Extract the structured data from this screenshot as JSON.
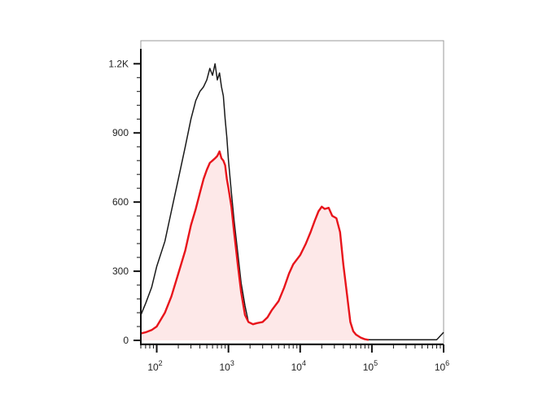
{
  "chart_data": {
    "type": "area",
    "title": "",
    "xlabel": "",
    "ylabel": "",
    "x_scale": "log",
    "xlim": [
      60,
      1000000
    ],
    "ylim": [
      0,
      1300
    ],
    "grid": false,
    "y_ticks": [
      {
        "value": 0,
        "label": "0"
      },
      {
        "value": 300,
        "label": "300"
      },
      {
        "value": 600,
        "label": "600"
      },
      {
        "value": 900,
        "label": "900"
      },
      {
        "value": 1200,
        "label": "1.2K"
      }
    ],
    "x_ticks": [
      {
        "value": 100,
        "base": "10",
        "exp": "2"
      },
      {
        "value": 1000,
        "base": "10",
        "exp": "3"
      },
      {
        "value": 10000,
        "base": "10",
        "exp": "4"
      },
      {
        "value": 100000,
        "base": "10",
        "exp": "5"
      },
      {
        "value": 1000000,
        "base": "10",
        "exp": "6"
      }
    ],
    "series": [
      {
        "color": "#1a1a1a",
        "fill": "none",
        "x": [
          60,
          70,
          85,
          100,
          130,
          160,
          200,
          250,
          300,
          350,
          400,
          450,
          500,
          550,
          600,
          650,
          700,
          750,
          800,
          850,
          900,
          950,
          1000,
          1100,
          1200,
          1350,
          1500,
          1700,
          1900,
          2200,
          2500,
          3000,
          3500,
          4000,
          5000,
          6000,
          7000,
          8000,
          10000,
          20000,
          50000,
          100000,
          200000,
          500000,
          800000,
          1000000
        ],
        "y": [
          110,
          160,
          230,
          320,
          430,
          560,
          700,
          840,
          960,
          1040,
          1080,
          1100,
          1130,
          1180,
          1150,
          1200,
          1130,
          1160,
          1100,
          1060,
          960,
          880,
          780,
          640,
          520,
          380,
          250,
          150,
          80,
          50,
          30,
          20,
          18,
          15,
          12,
          10,
          10,
          8,
          6,
          5,
          4,
          3,
          3,
          3,
          3,
          35
        ]
      },
      {
        "color": "#e8141b",
        "fill": "#fde8e8",
        "x": [
          60,
          70,
          85,
          100,
          130,
          160,
          200,
          250,
          300,
          350,
          400,
          450,
          500,
          550,
          600,
          650,
          700,
          750,
          800,
          850,
          900,
          950,
          1000,
          1100,
          1200,
          1350,
          1500,
          1700,
          1900,
          2200,
          2500,
          3000,
          3500,
          4000,
          5000,
          6000,
          7000,
          8000,
          10000,
          12000,
          14000,
          16000,
          18000,
          20000,
          22000,
          25000,
          28000,
          32000,
          36000,
          40000,
          45000,
          50000,
          55000,
          60000,
          70000,
          80000,
          90000
        ],
        "y": [
          30,
          35,
          45,
          60,
          120,
          190,
          290,
          390,
          500,
          570,
          640,
          700,
          740,
          770,
          780,
          790,
          800,
          820,
          790,
          780,
          760,
          700,
          660,
          580,
          470,
          330,
          210,
          110,
          80,
          70,
          75,
          80,
          100,
          130,
          170,
          230,
          290,
          330,
          370,
          420,
          470,
          520,
          560,
          580,
          570,
          575,
          540,
          530,
          470,
          330,
          200,
          80,
          40,
          25,
          12,
          5,
          2
        ]
      }
    ]
  }
}
